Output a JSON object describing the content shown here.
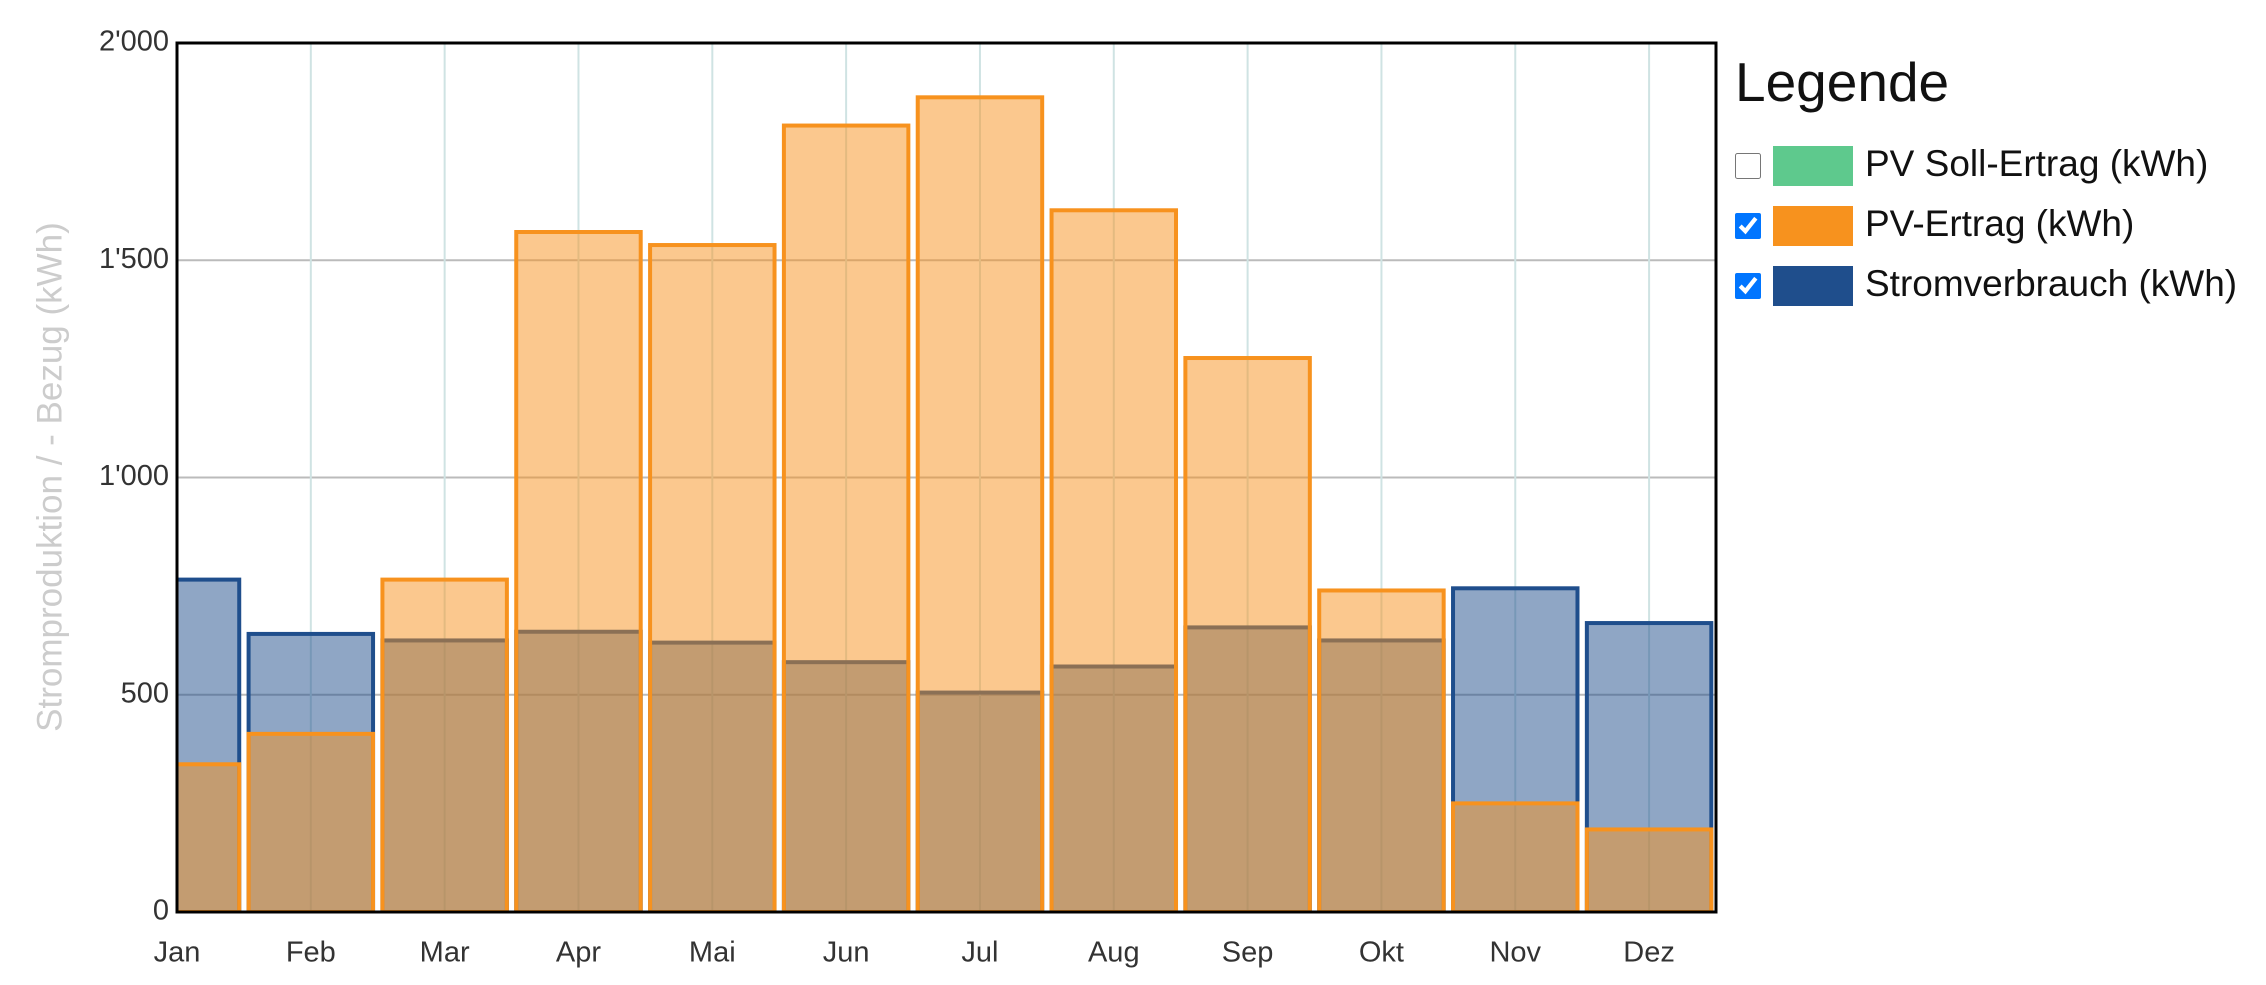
{
  "chart_data": {
    "type": "bar",
    "ylabel": "Stromproduktion / - Bezug (kWh)",
    "legend_title": "Legende",
    "categories": [
      "Jan",
      "Feb",
      "Mar",
      "Apr",
      "Mai",
      "Jun",
      "Jul",
      "Aug",
      "Sep",
      "Okt",
      "Nov",
      "Dez"
    ],
    "series": [
      {
        "name": "PV Soll-Ertrag (kWh)",
        "color": "#5ec98d",
        "visible": false
      },
      {
        "name": "PV-Ertrag (kWh)",
        "color": "#f7921e",
        "visible": true,
        "values": [
          340,
          410,
          765,
          1565,
          1535,
          1810,
          1875,
          1615,
          1275,
          740,
          250,
          190
        ]
      },
      {
        "name": "Stromverbrauch (kWh)",
        "color": "#1f4e8c",
        "visible": true,
        "values": [
          765,
          640,
          625,
          645,
          620,
          575,
          505,
          565,
          655,
          625,
          745,
          665
        ]
      }
    ],
    "ylim": [
      0,
      2000
    ],
    "yticks": [
      0,
      500,
      {
        "value": 1000,
        "label": "1'000"
      },
      {
        "value": 1500,
        "label": "1'500"
      },
      {
        "value": 2000,
        "label": "2'000"
      }
    ],
    "grid": true
  }
}
